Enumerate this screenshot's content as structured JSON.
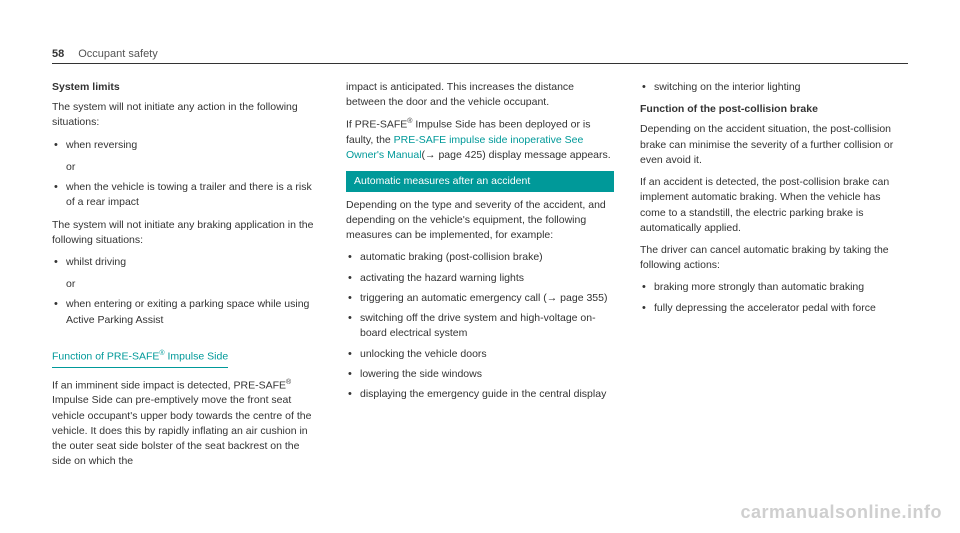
{
  "header": {
    "page": "58",
    "section": "Occupant safety"
  },
  "col1": {
    "h1": "System limits",
    "p1": "The system will not initiate any action in the following situations:",
    "li1": "when reversing",
    "or": "or",
    "li2": "when the vehicle is towing a trailer and there is a risk of a rear impact",
    "p2": "The system will not initiate any braking application in the following situations:",
    "li3": "whilst driving",
    "li4": "when entering or exiting a parking space while using Active Parking Assist",
    "sub_pre": "Function of PRE-SAFE",
    "sub_post": " Impulse Side",
    "sup": "®",
    "p3a": "If an imminent side impact is detected, PRE-SAFE",
    "p3b": " Impulse Side can pre-emptively move the front seat vehicle occupant's upper body towards the centre of the vehicle. It does this by rapidly inflating an air cushion in the outer seat side bolster of the seat backrest on the side on which the"
  },
  "col2": {
    "p1": "impact is anticipated. This increases the distance between the door and the vehicle occupant.",
    "p2a": "If PRE-SAFE",
    "p2b": " Impulse Side has been deployed or is faulty, the ",
    "link": "PRE-SAFE impulse side inoperative See Owner's Manual",
    "p2c": "(",
    "arrow": "→",
    "pageref": " page 425) display message appears.",
    "banner": "Automatic measures after an accident",
    "p3": "Depending on the type and severity of the accident, and depending on the vehicle's equipment, the following measures can be implemented, for example:",
    "li1": "automatic braking (post-collision brake)",
    "li2": "activating the hazard warning lights",
    "li3a": "triggering an automatic emergency call (",
    "li3b": " page 355)",
    "li4": "switching off the drive system and high-voltage on-board electrical system",
    "li5": "unlocking the vehicle doors",
    "li6": "lowering the side windows",
    "li7": "displaying the emergency guide in the central display"
  },
  "col3": {
    "li1": "switching on the interior lighting",
    "h1": "Function of the post-collision brake",
    "p1": "Depending on the accident situation, the post-collision brake can minimise the severity of a further collision or even avoid it.",
    "p2": "If an accident is detected, the post-collision brake can implement automatic braking. When the vehicle has come to a standstill, the electric parking brake is automatically applied.",
    "p3": "The driver can cancel automatic braking by taking the following actions:",
    "li2": "braking more strongly than automatic braking",
    "li3": "fully depressing the accelerator pedal with force"
  },
  "watermark": "carmanualsonline.info"
}
